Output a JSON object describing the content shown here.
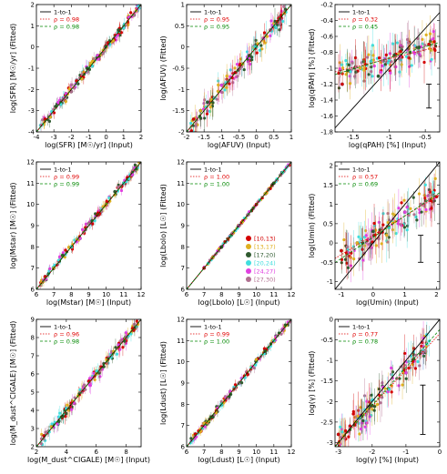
{
  "legend_labels": {
    "one_to_one": "1-to-1",
    "rho_prefix": "ρ = "
  },
  "colors": {
    "one_to_one": "#000000",
    "rho_red": "#e00000",
    "rho_green": "#008800",
    "bin_colors": [
      "#d40000",
      "#e0b020",
      "#2f5a2f",
      "#40dede",
      "#e040e0",
      "#b07090"
    ]
  },
  "color_bins": [
    "[10,13)",
    "[13,17)",
    "[17,20)",
    "[20,24)",
    "[24,27)",
    "[27,30)"
  ],
  "chart_data": [
    {
      "id": "sfr",
      "type": "scatter",
      "xlabel": "log(SFR) [M☉/yr] (Input)",
      "ylabel": "log(SFR) [M☉/yr] (Fitted)",
      "xlim": [
        -4,
        2
      ],
      "ylim": [
        -4,
        2
      ],
      "xticks": [
        -4,
        -3,
        -2,
        -1,
        0,
        1,
        2
      ],
      "yticks": [
        -4,
        -3,
        -2,
        -1,
        0,
        1,
        2
      ],
      "rho_red": "0.98",
      "rho_green": "0.98",
      "fit_red": [
        1.0,
        0.0
      ],
      "fit_green": [
        1.0,
        0.0
      ],
      "x_range": [
        -3.8,
        1.9
      ],
      "scatter_sigma": 0.25,
      "points_x": [
        -3.5,
        -3.2,
        -2.9,
        -2.6,
        -2.3,
        -2.0,
        -1.7,
        -1.4,
        -1.1,
        -0.8,
        -0.5,
        -0.2,
        0.1,
        0.4,
        0.7,
        1.0,
        1.3,
        1.6
      ],
      "points_y": [
        -3.4,
        -3.3,
        -2.8,
        -2.7,
        -2.2,
        -2.1,
        -1.6,
        -1.5,
        -1.0,
        -0.9,
        -0.4,
        -0.3,
        0.2,
        0.3,
        0.8,
        0.9,
        1.4,
        1.5
      ]
    },
    {
      "id": "afuv",
      "type": "scatter",
      "xlabel": "log(AFUV) (Input)",
      "ylabel": "log(AFUV) (Fitted)",
      "xlim": [
        -2.0,
        1.0
      ],
      "ylim": [
        -2.0,
        1.0
      ],
      "xticks": [
        -2.0,
        -1.5,
        -1.0,
        -0.5,
        0.0,
        0.5,
        1.0
      ],
      "yticks": [
        -2.0,
        -1.5,
        -1.0,
        -0.5,
        0.0,
        0.5,
        1.0
      ],
      "rho_red": "0.95",
      "rho_green": "0.95",
      "fit_red": [
        1.0,
        0.0
      ],
      "fit_green": [
        1.0,
        0.0
      ],
      "x_range": [
        -1.9,
        0.9
      ],
      "scatter_sigma": 0.25,
      "points_x": [
        -1.8,
        -1.6,
        -1.4,
        -1.2,
        -1.0,
        -0.8,
        -0.6,
        -0.4,
        -0.2,
        0.0,
        0.2,
        0.4,
        0.6,
        0.8
      ],
      "points_y": [
        -1.7,
        -1.5,
        -1.3,
        -1.2,
        -0.9,
        -0.8,
        -0.6,
        -0.4,
        -0.2,
        0.0,
        0.2,
        0.4,
        0.6,
        0.8
      ]
    },
    {
      "id": "qpah",
      "type": "scatter",
      "xlabel": "log(qPAH) [%] (Input)",
      "ylabel": "log(qPAH) [%] (Fitted)",
      "xlim": [
        -1.75,
        -0.3
      ],
      "ylim": [
        -1.8,
        -0.2
      ],
      "xticks": [
        -1.5,
        -1.0,
        -0.5
      ],
      "yticks": [
        -1.8,
        -1.6,
        -1.4,
        -1.2,
        -1.0,
        -0.8,
        -0.6,
        -0.4,
        -0.2
      ],
      "rho_red": "0.32",
      "rho_green": "0.45",
      "fit_red": [
        0.22,
        -0.66
      ],
      "fit_green": [
        0.28,
        -0.59
      ],
      "x_range": [
        -1.7,
        -0.35
      ],
      "scatter_sigma": 0.2,
      "points_x": [
        -1.65,
        -1.4,
        -1.15,
        -1.0,
        -0.85,
        -0.6,
        -0.45
      ],
      "points_y": [
        -1.2,
        -1.0,
        -1.1,
        -0.9,
        -0.85,
        -0.8,
        -0.7
      ],
      "error_bar": {
        "x": -0.45,
        "y0": -1.5,
        "y1": -1.2
      }
    },
    {
      "id": "mstar",
      "type": "scatter",
      "xlabel": "log(Mstar) [M☉] (Input)",
      "ylabel": "log(Mstar) [M☉] (Fitted)",
      "xlim": [
        6,
        12
      ],
      "ylim": [
        6,
        12
      ],
      "xticks": [
        6,
        7,
        8,
        9,
        10,
        11,
        12
      ],
      "yticks": [
        6,
        7,
        8,
        9,
        10,
        11,
        12
      ],
      "rho_red": "0.99",
      "rho_green": "0.99",
      "fit_red": [
        1.0,
        0.0
      ],
      "fit_green": [
        1.0,
        0.0
      ],
      "x_range": [
        6.2,
        11.9
      ],
      "scatter_sigma": 0.2,
      "points_x": [
        6.5,
        7.0,
        7.5,
        8.0,
        8.5,
        9.0,
        9.5,
        10.0,
        10.5,
        11.0,
        11.5
      ],
      "points_y": [
        6.6,
        7.0,
        7.6,
        8.0,
        8.4,
        9.1,
        9.5,
        10.0,
        10.6,
        11.0,
        11.4
      ]
    },
    {
      "id": "lbolo",
      "type": "scatter",
      "xlabel": "log(Lbolo) [L☉] (Input)",
      "ylabel": "log(Lbolo) [L☉] (Fitted)",
      "xlim": [
        6,
        12
      ],
      "ylim": [
        6,
        12
      ],
      "xticks": [
        6,
        7,
        8,
        9,
        10,
        11,
        12
      ],
      "yticks": [
        6,
        7,
        8,
        9,
        10,
        11,
        12
      ],
      "rho_red": "1.00",
      "rho_green": "1.00",
      "fit_red": [
        1.0,
        0.0
      ],
      "fit_green": [
        1.0,
        0.0
      ],
      "x_range": [
        7.0,
        11.9
      ],
      "scatter_sigma": 0.06,
      "points_x": [
        7.0,
        7.5,
        8.0,
        8.5,
        9.0,
        9.5,
        10.0,
        10.5,
        11.0,
        11.5
      ],
      "points_y": [
        7.0,
        7.5,
        8.0,
        8.5,
        9.0,
        9.5,
        10.0,
        10.5,
        11.0,
        11.5
      ]
    },
    {
      "id": "umin",
      "type": "scatter",
      "xlabel": "log(Umin) (Input)",
      "ylabel": "log(Umin) (Fitted)",
      "xlim": [
        -1.2,
        2.1
      ],
      "ylim": [
        -1.2,
        2.1
      ],
      "xticks": [
        -1,
        0,
        1,
        2
      ],
      "yticks": [
        -1.0,
        -0.5,
        0.0,
        0.5,
        1.0,
        1.5,
        2.0
      ],
      "rho_red": "0.57",
      "rho_green": "0.69",
      "fit_red": [
        0.5,
        0.2
      ],
      "fit_green": [
        0.55,
        0.15
      ],
      "x_range": [
        -1.0,
        2.0
      ],
      "scatter_sigma": 0.4,
      "points_x": [
        -1.0,
        -0.5,
        0.0,
        0.5,
        1.0,
        1.5,
        2.0
      ],
      "points_y": [
        -0.2,
        0.0,
        0.3,
        0.4,
        0.8,
        1.0,
        1.2
      ],
      "error_bar": {
        "x": 1.5,
        "y0": -0.5,
        "y1": 0.2
      }
    },
    {
      "id": "mdust",
      "type": "scatter",
      "xlabel": "log(M_dust^CIGALE) [M☉] (Input)",
      "ylabel": "log(M_dust^CIGALE) [M☉] (Fitted)",
      "xlim": [
        2,
        9
      ],
      "ylim": [
        2,
        9
      ],
      "xticks": [
        2,
        4,
        6,
        8
      ],
      "yticks": [
        2,
        3,
        4,
        5,
        6,
        7,
        8,
        9
      ],
      "rho_red": "0.96",
      "rho_green": "0.98",
      "fit_red": [
        1.0,
        0.0
      ],
      "fit_green": [
        1.0,
        0.0
      ],
      "x_range": [
        2.3,
        8.8
      ],
      "scatter_sigma": 0.35,
      "points_x": [
        2.5,
        3.0,
        3.5,
        4.0,
        4.5,
        5.0,
        5.5,
        6.0,
        6.5,
        7.0,
        7.5,
        8.0,
        8.5
      ],
      "points_y": [
        2.6,
        3.1,
        3.4,
        4.1,
        4.4,
        5.0,
        5.6,
        6.0,
        6.4,
        7.0,
        7.6,
        8.0,
        8.4
      ]
    },
    {
      "id": "ldust",
      "type": "scatter",
      "xlabel": "log(Ldust) [L☉] (Input)",
      "ylabel": "log(Ldust) [L☉] (Fitted)",
      "xlim": [
        6,
        12
      ],
      "ylim": [
        6,
        12
      ],
      "xticks": [
        6,
        7,
        8,
        9,
        10,
        11,
        12
      ],
      "yticks": [
        6,
        7,
        8,
        9,
        10,
        11,
        12
      ],
      "rho_red": "0.99",
      "rho_green": "1.00",
      "fit_red": [
        1.0,
        0.0
      ],
      "fit_green": [
        1.0,
        0.0
      ],
      "x_range": [
        6.2,
        11.9
      ],
      "scatter_sigma": 0.18,
      "points_x": [
        6.5,
        7.0,
        7.5,
        8.0,
        8.5,
        9.0,
        9.5,
        10.0,
        10.5,
        11.0,
        11.5
      ],
      "points_y": [
        6.6,
        7.1,
        7.4,
        8.0,
        8.6,
        9.0,
        9.4,
        10.1,
        10.5,
        11.0,
        11.5
      ]
    },
    {
      "id": "gamma",
      "type": "scatter",
      "xlabel": "log(γ) [%] (Input)",
      "ylabel": "log(γ) [%] (Fitted)",
      "xlim": [
        -3.1,
        0.0
      ],
      "ylim": [
        -3.1,
        0.0
      ],
      "xticks": [
        -3,
        -2,
        -1,
        0
      ],
      "yticks": [
        -3.0,
        -2.5,
        -2.0,
        -1.5,
        -1.0,
        -0.5,
        0.0
      ],
      "rho_red": "0.77",
      "rho_green": "0.78",
      "fit_red": [
        0.88,
        -0.35
      ],
      "fit_green": [
        0.92,
        -0.25
      ],
      "x_range": [
        -3.0,
        -0.3
      ],
      "scatter_sigma": 0.35,
      "points_x": [
        -3.0,
        -2.5,
        -2.0,
        -1.5,
        -1.0,
        -0.5
      ],
      "points_y": [
        -2.8,
        -2.5,
        -2.1,
        -1.7,
        -1.3,
        -0.8
      ],
      "error_bar": {
        "x": -0.5,
        "y0": -2.8,
        "y1": -1.6
      }
    }
  ]
}
